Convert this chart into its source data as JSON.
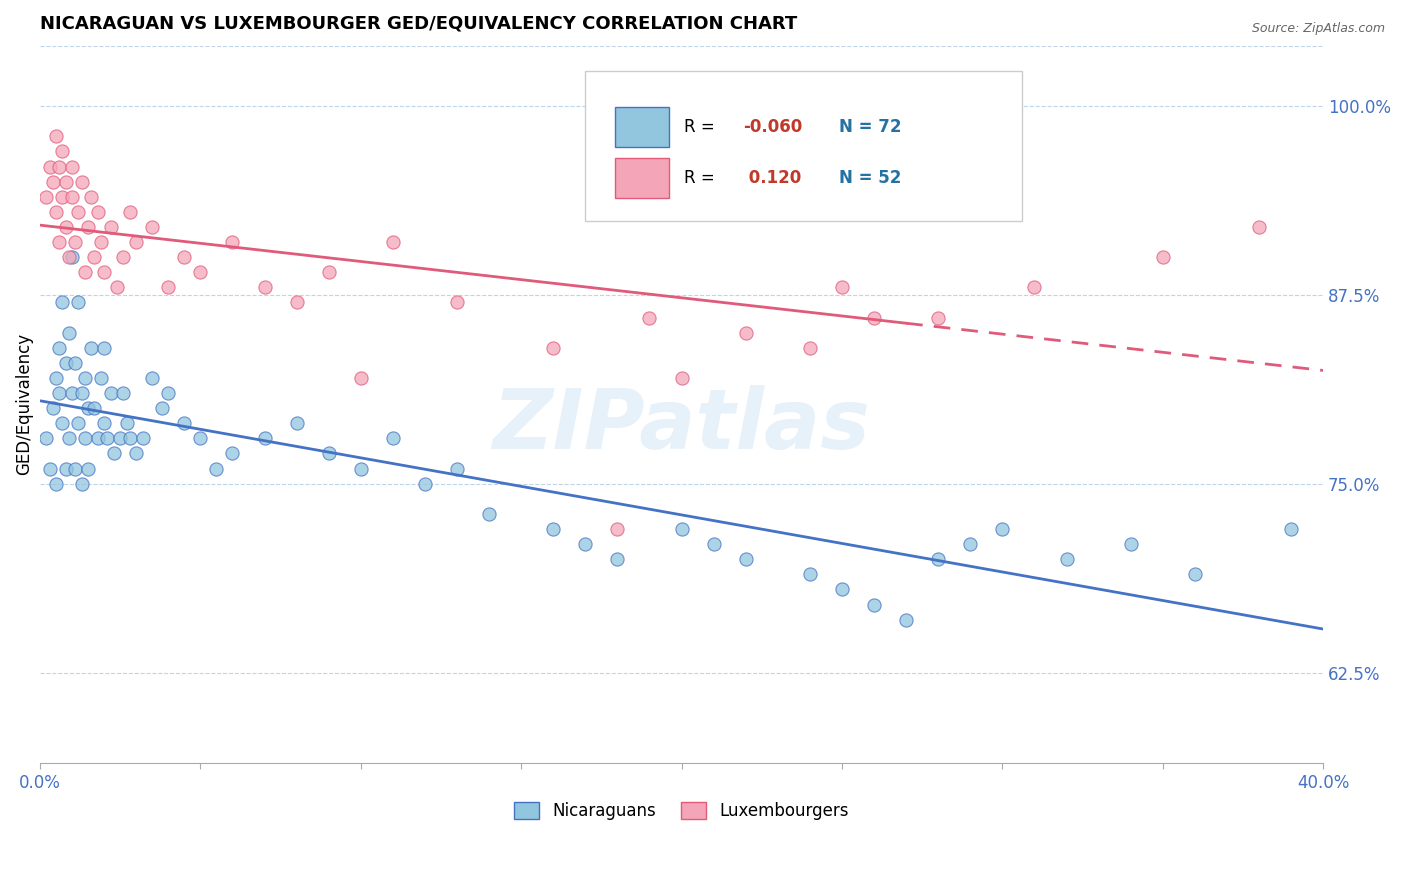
{
  "title": "NICARAGUAN VS LUXEMBOURGER GED/EQUIVALENCY CORRELATION CHART",
  "source_text": "Source: ZipAtlas.com",
  "ylabel": "GED/Equivalency",
  "xlim": [
    0.0,
    0.4
  ],
  "ylim": [
    0.565,
    1.04
  ],
  "right_yticks": [
    0.625,
    0.75,
    0.875,
    1.0
  ],
  "right_yticklabels": [
    "62.5%",
    "75.0%",
    "87.5%",
    "100.0%"
  ],
  "xticks": [
    0.0,
    0.05,
    0.1,
    0.15,
    0.2,
    0.25,
    0.3,
    0.35,
    0.4
  ],
  "xticklabels": [
    "0.0%",
    "",
    "",
    "",
    "",
    "",
    "",
    "",
    "40.0%"
  ],
  "legend_blue_label": "Nicaraguans",
  "legend_pink_label": "Luxembourgers",
  "R_blue": "-0.060",
  "N_blue": "72",
  "R_pink": "0.120",
  "N_pink": "52",
  "blue_color": "#92C5DE",
  "pink_color": "#F4A6B8",
  "blue_line_color": "#4472C4",
  "pink_line_color": "#E05A7A",
  "watermark": "ZIPatlas",
  "blue_scatter_x": [
    0.002,
    0.003,
    0.004,
    0.005,
    0.005,
    0.006,
    0.006,
    0.007,
    0.007,
    0.008,
    0.008,
    0.009,
    0.009,
    0.01,
    0.01,
    0.011,
    0.011,
    0.012,
    0.012,
    0.013,
    0.013,
    0.014,
    0.014,
    0.015,
    0.015,
    0.016,
    0.017,
    0.018,
    0.019,
    0.02,
    0.02,
    0.021,
    0.022,
    0.023,
    0.025,
    0.026,
    0.027,
    0.028,
    0.03,
    0.032,
    0.035,
    0.038,
    0.04,
    0.045,
    0.05,
    0.055,
    0.06,
    0.07,
    0.08,
    0.09,
    0.1,
    0.11,
    0.12,
    0.13,
    0.14,
    0.16,
    0.17,
    0.18,
    0.2,
    0.21,
    0.22,
    0.24,
    0.25,
    0.26,
    0.27,
    0.28,
    0.29,
    0.3,
    0.32,
    0.34,
    0.36,
    0.39
  ],
  "blue_scatter_y": [
    0.78,
    0.76,
    0.8,
    0.82,
    0.75,
    0.81,
    0.84,
    0.79,
    0.87,
    0.76,
    0.83,
    0.85,
    0.78,
    0.81,
    0.9,
    0.76,
    0.83,
    0.79,
    0.87,
    0.81,
    0.75,
    0.78,
    0.82,
    0.8,
    0.76,
    0.84,
    0.8,
    0.78,
    0.82,
    0.79,
    0.84,
    0.78,
    0.81,
    0.77,
    0.78,
    0.81,
    0.79,
    0.78,
    0.77,
    0.78,
    0.82,
    0.8,
    0.81,
    0.79,
    0.78,
    0.76,
    0.77,
    0.78,
    0.79,
    0.77,
    0.76,
    0.78,
    0.75,
    0.76,
    0.73,
    0.72,
    0.71,
    0.7,
    0.72,
    0.71,
    0.7,
    0.69,
    0.68,
    0.67,
    0.66,
    0.7,
    0.71,
    0.72,
    0.7,
    0.71,
    0.69,
    0.72
  ],
  "pink_scatter_x": [
    0.002,
    0.003,
    0.004,
    0.005,
    0.005,
    0.006,
    0.006,
    0.007,
    0.007,
    0.008,
    0.008,
    0.009,
    0.01,
    0.01,
    0.011,
    0.012,
    0.013,
    0.014,
    0.015,
    0.016,
    0.017,
    0.018,
    0.019,
    0.02,
    0.022,
    0.024,
    0.026,
    0.028,
    0.03,
    0.035,
    0.04,
    0.045,
    0.05,
    0.06,
    0.07,
    0.08,
    0.09,
    0.11,
    0.13,
    0.16,
    0.19,
    0.22,
    0.25,
    0.28,
    0.31,
    0.35,
    0.38,
    0.2,
    0.24,
    0.26,
    0.18,
    0.1
  ],
  "pink_scatter_y": [
    0.94,
    0.96,
    0.95,
    0.93,
    0.98,
    0.96,
    0.91,
    0.94,
    0.97,
    0.92,
    0.95,
    0.9,
    0.94,
    0.96,
    0.91,
    0.93,
    0.95,
    0.89,
    0.92,
    0.94,
    0.9,
    0.93,
    0.91,
    0.89,
    0.92,
    0.88,
    0.9,
    0.93,
    0.91,
    0.92,
    0.88,
    0.9,
    0.89,
    0.91,
    0.88,
    0.87,
    0.89,
    0.91,
    0.87,
    0.84,
    0.86,
    0.85,
    0.88,
    0.86,
    0.88,
    0.9,
    0.92,
    0.82,
    0.84,
    0.86,
    0.72,
    0.82
  ]
}
